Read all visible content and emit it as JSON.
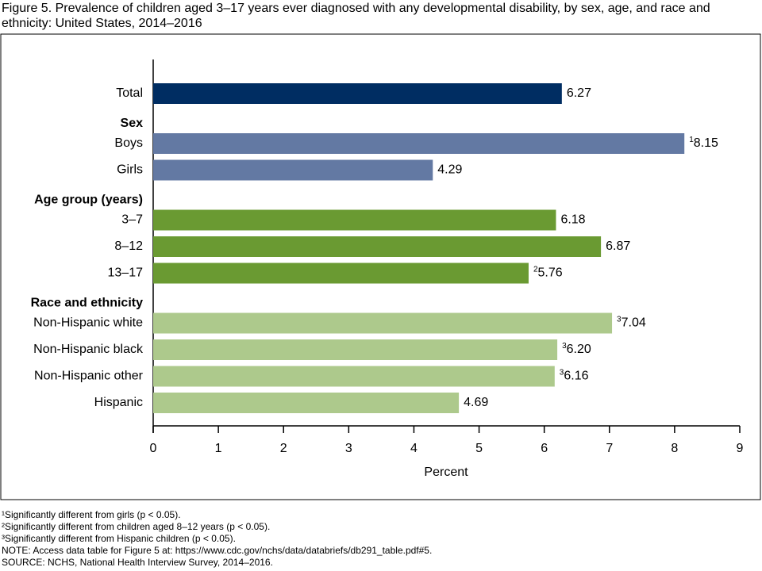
{
  "chart_data": {
    "type": "bar",
    "title": "Figure 5. Prevalence of children aged 3–17 years ever diagnosed with any developmental disability, by sex, age, and race and ethnicity: United States, 2014–2016",
    "groups": [
      {
        "color": "#002d62",
        "categories": [
          "Total"
        ],
        "values": [
          6.27
        ],
        "value_labels": [
          "6.27"
        ],
        "notes": [
          null
        ]
      },
      {
        "name": "Sex",
        "color": "#6379a3",
        "categories": [
          "Boys",
          "Girls"
        ],
        "values": [
          8.15,
          4.29
        ],
        "value_labels": [
          "8.15",
          "4.29"
        ],
        "notes": [
          "1",
          null
        ]
      },
      {
        "name": "Age group (years)",
        "color": "#6a9a32",
        "categories": [
          "3–7",
          "8–12",
          "13–17"
        ],
        "values": [
          6.18,
          6.87,
          5.76
        ],
        "value_labels": [
          "6.18",
          "6.87",
          "5.76"
        ],
        "notes": [
          null,
          null,
          "2"
        ]
      },
      {
        "name": "Race and ethnicity",
        "color": "#adc98c",
        "categories": [
          "Non-Hispanic white",
          "Non-Hispanic black",
          "Non-Hispanic other",
          "Hispanic"
        ],
        "values": [
          7.04,
          6.2,
          6.16,
          4.69
        ],
        "value_labels": [
          "7.04",
          "6.20",
          "6.16",
          "4.69"
        ],
        "notes": [
          "3",
          "3",
          "3",
          null
        ]
      }
    ],
    "xlabel": "Percent",
    "xlim": [
      0,
      9
    ],
    "xticks": [
      0,
      1,
      2,
      3,
      4,
      5,
      6,
      7,
      8,
      9
    ],
    "footnotes": [
      "¹Significantly different from girls (p < 0.05).",
      "²Significantly different from children aged 8–12 years (p < 0.05).",
      "³Significantly different from Hispanic children (p < 0.05).",
      "NOTE: Access data table for Figure 5 at: https://www.cdc.gov/nchs/data/databriefs/db291_table.pdf#5.",
      "SOURCE: NCHS, National Health Interview Survey, 2014–2016."
    ]
  }
}
